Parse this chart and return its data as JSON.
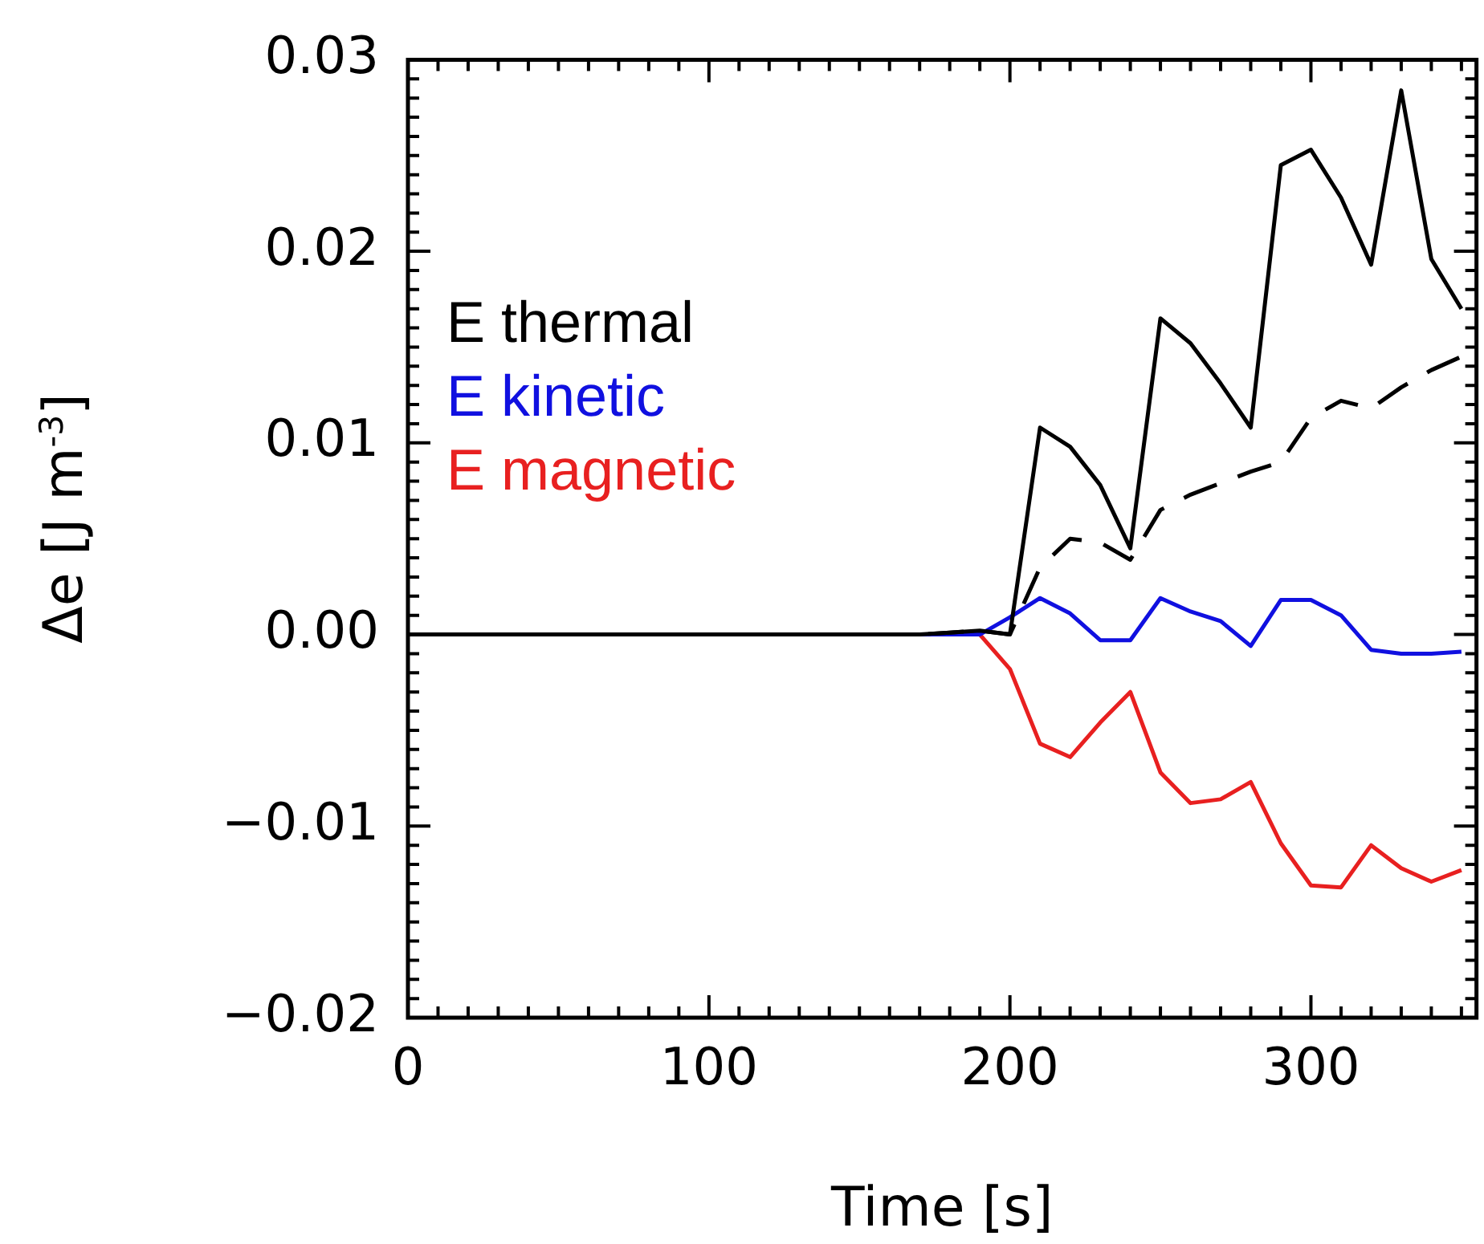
{
  "chart_data": {
    "type": "line",
    "xlabel": "Time [s]",
    "ylabel": "Δe [J m$^{-3}$]",
    "x": [
      0,
      10,
      20,
      30,
      40,
      50,
      60,
      70,
      80,
      90,
      100,
      110,
      120,
      130,
      140,
      150,
      160,
      170,
      180,
      190,
      200,
      210,
      220,
      230,
      240,
      250,
      260,
      270,
      280,
      290,
      300,
      310,
      320,
      330,
      340,
      350
    ],
    "series": [
      {
        "name": "E thermal",
        "color": "#000000",
        "values": [
          0,
          0,
          0,
          0,
          0,
          0,
          0,
          0,
          0,
          0,
          0,
          0,
          0,
          0,
          0,
          0,
          0,
          0,
          0.0001,
          0.0002,
          0,
          0.0108,
          0.0098,
          0.0078,
          0.0045,
          0.0165,
          0.0152,
          0.0131,
          0.0108,
          0.0245,
          0.0253,
          0.0228,
          0.0193,
          0.0284,
          0.0196,
          0.017
        ]
      },
      {
        "color": "#000000",
        "line_style": "dashed",
        "values": [
          0,
          0,
          0,
          0,
          0,
          0,
          0,
          0,
          0,
          0,
          0,
          0,
          0,
          0,
          0,
          0,
          0,
          0,
          0.0001,
          0.0002,
          0,
          0.0035,
          0.005,
          0.0048,
          0.0039,
          0.0065,
          0.0073,
          0.0079,
          0.0085,
          0.009,
          0.0113,
          0.0122,
          0.0118,
          0.0129,
          0.0138,
          0.0145
        ]
      },
      {
        "name": "E kinetic",
        "color": "#1010e0",
        "values": [
          null,
          null,
          null,
          null,
          null,
          null,
          null,
          null,
          null,
          null,
          null,
          null,
          null,
          null,
          null,
          null,
          0,
          0,
          0,
          0,
          0.0009,
          0.0019,
          0.0011,
          -0.0003,
          -0.0003,
          0.0019,
          0.0012,
          0.0007,
          -0.0006,
          0.0018,
          0.0018,
          0.001,
          -0.0008,
          -0.001,
          -0.001,
          -0.0009
        ]
      },
      {
        "name": "E magnetic",
        "color": "#e82020",
        "values": [
          null,
          null,
          null,
          null,
          null,
          null,
          null,
          null,
          null,
          null,
          null,
          null,
          null,
          null,
          null,
          null,
          null,
          null,
          null,
          0,
          -0.0018,
          -0.0057,
          -0.0064,
          -0.0046,
          -0.003,
          -0.0072,
          -0.0088,
          -0.0086,
          -0.0077,
          -0.0109,
          -0.0131,
          -0.0132,
          -0.011,
          -0.0122,
          -0.0129,
          -0.0123
        ]
      }
    ],
    "xlim": [
      0,
      355
    ],
    "xticks": [
      0,
      {
        "value": 10,
        "label": null
      },
      {
        "value": 20,
        "label": null
      },
      {
        "value": 30,
        "label": null
      },
      {
        "value": 40,
        "label": null
      },
      {
        "value": 50,
        "label": null
      },
      {
        "value": 60,
        "label": null
      },
      {
        "value": 70,
        "label": null
      },
      {
        "value": 80,
        "label": null
      },
      {
        "value": 90,
        "label": null
      },
      100,
      {
        "value": 110,
        "label": null
      },
      {
        "value": 120,
        "label": null
      },
      {
        "value": 130,
        "label": null
      },
      {
        "value": 140,
        "label": null
      },
      {
        "value": 150,
        "label": null
      },
      {
        "value": 160,
        "label": null
      },
      {
        "value": 170,
        "label": null
      },
      {
        "value": 180,
        "label": null
      },
      {
        "value": 190,
        "label": null
      },
      200,
      {
        "value": 210,
        "label": null
      },
      {
        "value": 220,
        "label": null
      },
      {
        "value": 230,
        "label": null
      },
      {
        "value": 240,
        "label": null
      },
      {
        "value": 250,
        "label": null
      },
      {
        "value": 260,
        "label": null
      },
      {
        "value": 270,
        "label": null
      },
      {
        "value": 280,
        "label": null
      },
      {
        "value": 290,
        "label": null
      },
      300,
      {
        "value": 310,
        "label": null
      },
      {
        "value": 320,
        "label": null
      },
      {
        "value": 330,
        "label": null
      },
      {
        "value": 340,
        "label": null
      },
      {
        "value": 350,
        "label": null
      }
    ],
    "ylim": [
      -0.02,
      0.03
    ],
    "yticks": [
      {
        "value": -0.02,
        "label": "−0.02"
      },
      {
        "value": -0.019,
        "label": null
      },
      {
        "value": -0.018,
        "label": null
      },
      {
        "value": -0.017,
        "label": null
      },
      {
        "value": -0.016,
        "label": null
      },
      {
        "value": -0.015,
        "label": null
      },
      {
        "value": -0.014,
        "label": null
      },
      {
        "value": -0.013,
        "label": null
      },
      {
        "value": -0.012,
        "label": null
      },
      {
        "value": -0.011,
        "label": null
      },
      {
        "value": -0.01,
        "label": "−0.01"
      },
      {
        "value": -0.009,
        "label": null
      },
      {
        "value": -0.008,
        "label": null
      },
      {
        "value": -0.007,
        "label": null
      },
      {
        "value": -0.006,
        "label": null
      },
      {
        "value": -0.005,
        "label": null
      },
      {
        "value": -0.004,
        "label": null
      },
      {
        "value": -0.003,
        "label": null
      },
      {
        "value": -0.002,
        "label": null
      },
      {
        "value": -0.001,
        "label": null
      },
      {
        "value": 0,
        "label": "0.00"
      },
      {
        "value": 0.001,
        "label": null
      },
      {
        "value": 0.002,
        "label": null
      },
      {
        "value": 0.003,
        "label": null
      },
      {
        "value": 0.004,
        "label": null
      },
      {
        "value": 0.005,
        "label": null
      },
      {
        "value": 0.006,
        "label": null
      },
      {
        "value": 0.007,
        "label": null
      },
      {
        "value": 0.008,
        "label": null
      },
      {
        "value": 0.009,
        "label": null
      },
      {
        "value": 0.01,
        "label": "0.01"
      },
      {
        "value": 0.011,
        "label": null
      },
      {
        "value": 0.012,
        "label": null
      },
      {
        "value": 0.013,
        "label": null
      },
      {
        "value": 0.014,
        "label": null
      },
      {
        "value": 0.015,
        "label": null
      },
      {
        "value": 0.016,
        "label": null
      },
      {
        "value": 0.017,
        "label": null
      },
      {
        "value": 0.018,
        "label": null
      },
      {
        "value": 0.019,
        "label": null
      },
      {
        "value": 0.02,
        "label": "0.02"
      },
      {
        "value": 0.021,
        "label": null
      },
      {
        "value": 0.022,
        "label": null
      },
      {
        "value": 0.023,
        "label": null
      },
      {
        "value": 0.024,
        "label": null
      },
      {
        "value": 0.025,
        "label": null
      },
      {
        "value": 0.026,
        "label": null
      },
      {
        "value": 0.027,
        "label": null
      },
      {
        "value": 0.028,
        "label": null
      },
      {
        "value": 0.029,
        "label": null
      },
      {
        "value": 0.03,
        "label": "0.03"
      }
    ],
    "grid": false,
    "legend": "left",
    "marker": "none",
    "line_style": "solid"
  }
}
